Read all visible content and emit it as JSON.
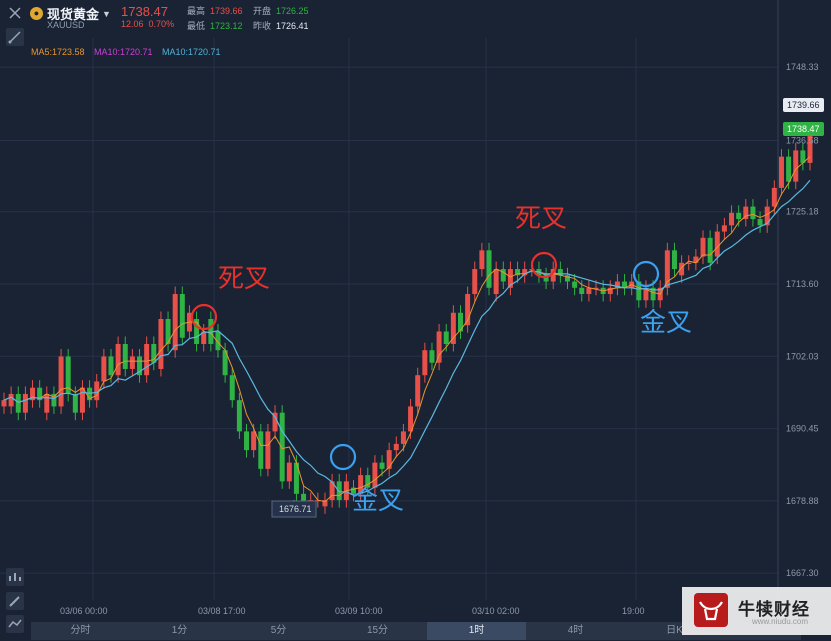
{
  "header": {
    "name": "现货黄金",
    "code": "XAUUSD",
    "price": "1738.47",
    "change": "12.06",
    "change_pct": "0.70%",
    "high_label": "最高",
    "high": "1739.66",
    "low_label": "最低",
    "low": "1723.12",
    "open_label": "开盘",
    "open": "1726.25",
    "prev_label": "昨收",
    "prev": "1726.41"
  },
  "ma_legend": [
    {
      "label": "MA5:1723.58",
      "color": "#e8962e"
    },
    {
      "label": "MA10:1720.71",
      "color": "#c940d6"
    },
    {
      "label": "MA10:1720.71",
      "color": "#4fb3d8"
    }
  ],
  "colors": {
    "up": "#e8504a",
    "down": "#2fb344",
    "ma_fast": "#e8962e",
    "ma_slow": "#5bb8e0",
    "gold_cross": "#3aa0f0",
    "death_cross": "#e8312b"
  },
  "y_axis": {
    "ticks": [
      "1748.33",
      "1736.58",
      "1725.18",
      "1713.60",
      "1702.03",
      "1690.45",
      "1678.88",
      "1667.30"
    ]
  },
  "x_axis": {
    "ticks": [
      "03/06 00:00",
      "03/08 17:00",
      "03/09 10:00",
      "03/10 02:00",
      "19:00"
    ]
  },
  "price_tags": {
    "high": "1739.66",
    "last": "1738.47",
    "low_marker": "1676.71"
  },
  "annotations": [
    {
      "text": "死叉",
      "kind": "death"
    },
    {
      "text": "金叉",
      "kind": "golden"
    },
    {
      "text": "死叉",
      "kind": "death"
    },
    {
      "text": "金叉",
      "kind": "golden"
    }
  ],
  "timeframes": {
    "items": [
      "分时",
      "1分",
      "5分",
      "15分",
      "1时",
      "4时",
      "日K"
    ],
    "active": "1时"
  },
  "watermark": {
    "name": "牛犊财经",
    "url": "www.niudu.com"
  },
  "tool_icons": [
    "collapse-icon",
    "draw-line-icon",
    "indicator-icon",
    "pencil-icon",
    "chart-type-icon"
  ],
  "chart_data": {
    "type": "candlestick",
    "y_range": [
      1663,
      1753
    ],
    "candles": [
      [
        1694,
        1695
      ],
      [
        1694,
        1696
      ],
      [
        1696,
        1693
      ],
      [
        1693,
        1696
      ],
      [
        1695,
        1697
      ],
      [
        1697,
        1695
      ],
      [
        1693,
        1696
      ],
      [
        1696,
        1694
      ],
      [
        1694,
        1702
      ],
      [
        1702,
        1696
      ],
      [
        1696,
        1693
      ],
      [
        1693,
        1697
      ],
      [
        1697,
        1695
      ],
      [
        1695,
        1698
      ],
      [
        1698,
        1702
      ],
      [
        1702,
        1699
      ],
      [
        1699,
        1704
      ],
      [
        1704,
        1700
      ],
      [
        1700,
        1702
      ],
      [
        1702,
        1699
      ],
      [
        1699,
        1704
      ],
      [
        1704,
        1701
      ],
      [
        1700,
        1708
      ],
      [
        1708,
        1704
      ],
      [
        1703,
        1712
      ],
      [
        1712,
        1705
      ],
      [
        1706,
        1709
      ],
      [
        1708,
        1704
      ],
      [
        1704,
        1706
      ],
      [
        1708,
        1704
      ],
      [
        1706,
        1703
      ],
      [
        1703,
        1699
      ],
      [
        1699,
        1695
      ],
      [
        1695,
        1690
      ],
      [
        1690,
        1687
      ],
      [
        1687,
        1690
      ],
      [
        1690,
        1684
      ],
      [
        1684,
        1690
      ],
      [
        1690,
        1693
      ],
      [
        1693,
        1682
      ],
      [
        1682,
        1685
      ],
      [
        1685,
        1680
      ],
      [
        1680,
        1678
      ],
      [
        1678,
        1679
      ],
      [
        1679,
        1679
      ],
      [
        1678,
        1679
      ],
      [
        1679,
        1682
      ],
      [
        1682,
        1679
      ],
      [
        1679,
        1682
      ],
      [
        1681,
        1680
      ],
      [
        1680,
        1683
      ],
      [
        1683,
        1681
      ],
      [
        1681,
        1685
      ],
      [
        1685,
        1684
      ],
      [
        1684,
        1687
      ],
      [
        1687,
        1688
      ],
      [
        1688,
        1690
      ],
      [
        1690,
        1694
      ],
      [
        1694,
        1699
      ],
      [
        1699,
        1703
      ],
      [
        1703,
        1701
      ],
      [
        1701,
        1706
      ],
      [
        1706,
        1704
      ],
      [
        1704,
        1709
      ],
      [
        1709,
        1706
      ],
      [
        1707,
        1712
      ],
      [
        1712,
        1716
      ],
      [
        1716,
        1719
      ],
      [
        1719,
        1713
      ],
      [
        1712,
        1716
      ],
      [
        1716,
        1714
      ],
      [
        1713,
        1716
      ],
      [
        1716,
        1715
      ],
      [
        1715,
        1716
      ],
      [
        1716,
        1716
      ],
      [
        1716,
        1715
      ],
      [
        1715,
        1714
      ],
      [
        1714,
        1716
      ],
      [
        1716,
        1715
      ],
      [
        1715,
        1714
      ],
      [
        1714,
        1713
      ],
      [
        1713,
        1712
      ],
      [
        1712,
        1713
      ],
      [
        1713,
        1713
      ],
      [
        1713,
        1712
      ],
      [
        1712,
        1713
      ],
      [
        1713,
        1714
      ],
      [
        1714,
        1713
      ],
      [
        1713,
        1714
      ],
      [
        1714,
        1711
      ],
      [
        1711,
        1713
      ],
      [
        1713,
        1711
      ],
      [
        1711,
        1713
      ],
      [
        1713,
        1719
      ],
      [
        1719,
        1716
      ],
      [
        1715,
        1717
      ],
      [
        1717,
        1717
      ],
      [
        1717,
        1718
      ],
      [
        1718,
        1721
      ],
      [
        1721,
        1717
      ],
      [
        1718,
        1722
      ],
      [
        1722,
        1723
      ],
      [
        1723,
        1725
      ],
      [
        1725,
        1724
      ],
      [
        1724,
        1726
      ],
      [
        1726,
        1724
      ],
      [
        1724,
        1723
      ],
      [
        1723,
        1726
      ],
      [
        1726,
        1729
      ],
      [
        1729,
        1734
      ],
      [
        1734,
        1730
      ],
      [
        1730,
        1735
      ],
      [
        1735,
        1733
      ],
      [
        1733,
        1738
      ]
    ]
  }
}
